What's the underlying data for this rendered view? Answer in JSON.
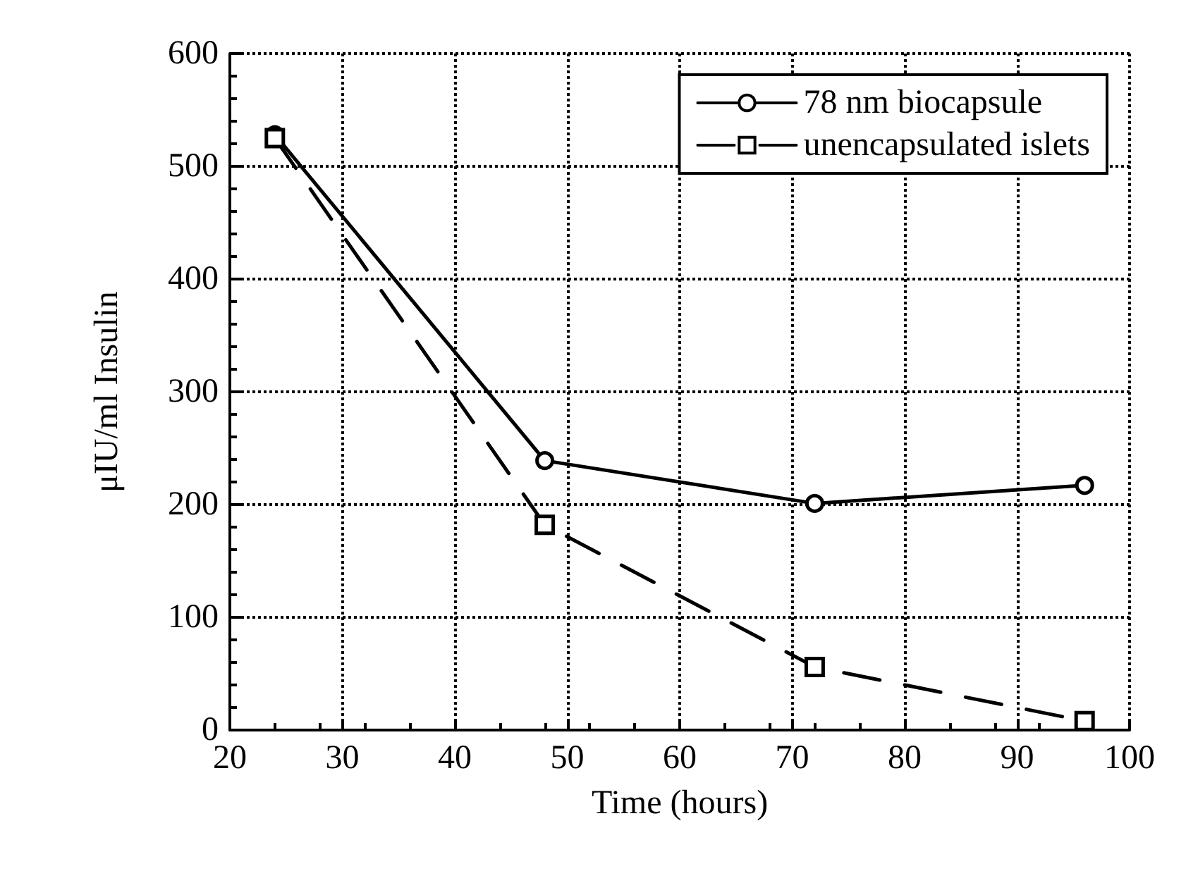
{
  "chart_data": {
    "type": "line",
    "xlabel": "Time (hours)",
    "ylabel": "μIU/ml Insulin",
    "x": [
      24,
      48,
      72,
      96
    ],
    "series": [
      {
        "name": "78 nm biocapsule",
        "color": "#000000",
        "marker": "circle",
        "line_style": "solid",
        "values": [
          528,
          239,
          201,
          217
        ]
      },
      {
        "name": "unencapsulated islets",
        "color": "#000000",
        "marker": "square",
        "line_style": "dashed",
        "values": [
          525,
          182,
          56,
          8
        ]
      }
    ],
    "xlim": [
      20,
      100
    ],
    "xticks": [
      20,
      30,
      40,
      50,
      60,
      70,
      80,
      90,
      100
    ],
    "ylim": [
      0,
      600
    ],
    "yticks": [
      0,
      100,
      200,
      300,
      400,
      500,
      600
    ],
    "grid": true,
    "legend": "top right"
  }
}
